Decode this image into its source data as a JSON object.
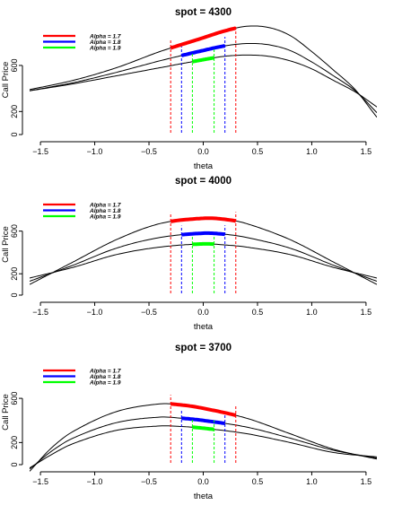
{
  "chart_data": [
    {
      "type": "line",
      "title": "spot = 4300",
      "xlabel": "theta",
      "ylabel": "Call Price",
      "xlim": [
        -1.6,
        1.6
      ],
      "ylim": [
        0,
        950
      ],
      "xticks": [
        -1.5,
        -1.0,
        -0.5,
        0.0,
        0.5,
        1.0,
        1.5
      ],
      "yticks": [
        0,
        200,
        600
      ],
      "legend_position": "top-left",
      "series": [
        {
          "name": "Alpha = 1.7",
          "color": "#ff0000",
          "x": [
            -1.6,
            -1.2,
            -0.8,
            -0.4,
            0.0,
            0.2,
            0.4,
            0.6,
            0.8,
            1.0,
            1.2,
            1.4,
            1.6
          ],
          "y": [
            390,
            470,
            580,
            720,
            840,
            900,
            940,
            930,
            860,
            720,
            560,
            390,
            150
          ]
        },
        {
          "name": "Alpha = 1.8",
          "color": "#0000ff",
          "x": [
            -1.6,
            -1.2,
            -0.8,
            -0.4,
            0.0,
            0.2,
            0.4,
            0.6,
            0.8,
            1.0,
            1.2,
            1.4,
            1.6
          ],
          "y": [
            380,
            450,
            540,
            640,
            730,
            770,
            790,
            780,
            730,
            630,
            510,
            380,
            190
          ]
        },
        {
          "name": "Alpha = 1.9",
          "color": "#00ff00",
          "x": [
            -1.6,
            -1.2,
            -0.8,
            -0.4,
            0.0,
            0.2,
            0.4,
            0.6,
            0.8,
            1.0,
            1.2,
            1.4,
            1.6
          ],
          "y": [
            380,
            440,
            510,
            580,
            650,
            680,
            690,
            680,
            640,
            570,
            470,
            370,
            240
          ]
        }
      ],
      "highlights": [
        {
          "series": "Alpha = 1.7",
          "range": [
            -0.3,
            0.3
          ],
          "color": "#ff0000"
        },
        {
          "series": "Alpha = 1.8",
          "range": [
            -0.2,
            0.2
          ],
          "color": "#0000ff"
        },
        {
          "series": "Alpha = 1.9",
          "range": [
            -0.1,
            0.1
          ],
          "color": "#00ff00"
        }
      ]
    },
    {
      "type": "line",
      "title": "spot = 4000",
      "xlabel": "theta",
      "ylabel": "Call Price",
      "xlim": [
        -1.6,
        1.6
      ],
      "ylim": [
        0,
        950
      ],
      "xticks": [
        -1.5,
        -1.0,
        -0.5,
        0.0,
        0.5,
        1.0,
        1.5
      ],
      "yticks": [
        0,
        200,
        600
      ],
      "legend_position": "top-left",
      "series": [
        {
          "name": "Alpha = 1.7",
          "color": "#ff0000",
          "x": [
            -1.6,
            -1.2,
            -0.8,
            -0.4,
            0.0,
            0.2,
            0.4,
            0.8,
            1.2,
            1.6
          ],
          "y": [
            100,
            310,
            520,
            670,
            720,
            710,
            670,
            520,
            310,
            100
          ]
        },
        {
          "name": "Alpha = 1.8",
          "color": "#0000ff",
          "x": [
            -1.6,
            -1.2,
            -0.8,
            -0.4,
            0.0,
            0.2,
            0.4,
            0.8,
            1.2,
            1.6
          ],
          "y": [
            130,
            280,
            440,
            540,
            580,
            570,
            540,
            440,
            280,
            130
          ]
        },
        {
          "name": "Alpha = 1.9",
          "color": "#00ff00",
          "x": [
            -1.6,
            -1.2,
            -0.8,
            -0.4,
            0.0,
            0.2,
            0.4,
            0.8,
            1.2,
            1.6
          ],
          "y": [
            160,
            260,
            380,
            450,
            480,
            470,
            450,
            380,
            260,
            160
          ]
        }
      ],
      "highlights": [
        {
          "series": "Alpha = 1.7",
          "range": [
            -0.3,
            0.3
          ],
          "color": "#ff0000"
        },
        {
          "series": "Alpha = 1.8",
          "range": [
            -0.2,
            0.2
          ],
          "color": "#0000ff"
        },
        {
          "series": "Alpha = 1.9",
          "range": [
            -0.1,
            0.1
          ],
          "color": "#00ff00"
        }
      ]
    },
    {
      "type": "line",
      "title": "spot = 3700",
      "xlabel": "theta",
      "ylabel": "Call Price",
      "xlim": [
        -1.6,
        1.6
      ],
      "ylim": [
        0,
        950
      ],
      "xticks": [
        -1.5,
        -1.0,
        -0.5,
        0.0,
        0.5,
        1.0,
        1.5
      ],
      "yticks": [
        0,
        200,
        600
      ],
      "legend_position": "top-left",
      "series": [
        {
          "name": "Alpha = 1.7",
          "color": "#ff0000",
          "x": [
            -1.6,
            -1.4,
            -1.2,
            -0.8,
            -0.4,
            -0.2,
            0.0,
            0.4,
            0.8,
            1.2,
            1.6
          ],
          "y": [
            -60,
            150,
            300,
            480,
            550,
            540,
            510,
            420,
            280,
            140,
            50
          ]
        },
        {
          "name": "Alpha = 1.8",
          "color": "#0000ff",
          "x": [
            -1.6,
            -1.4,
            -1.2,
            -0.8,
            -0.4,
            -0.2,
            0.0,
            0.4,
            0.8,
            1.2,
            1.6
          ],
          "y": [
            -40,
            120,
            240,
            380,
            430,
            420,
            400,
            340,
            240,
            130,
            60
          ]
        },
        {
          "name": "Alpha = 1.9",
          "color": "#00ff00",
          "x": [
            -1.6,
            -1.4,
            -1.2,
            -0.8,
            -0.4,
            -0.2,
            0.0,
            0.4,
            0.8,
            1.2,
            1.6
          ],
          "y": [
            -30,
            90,
            190,
            310,
            350,
            345,
            330,
            280,
            200,
            110,
            70
          ]
        }
      ],
      "highlights": [
        {
          "series": "Alpha = 1.7",
          "range": [
            -0.3,
            0.3
          ],
          "color": "#ff0000"
        },
        {
          "series": "Alpha = 1.8",
          "range": [
            -0.2,
            0.2
          ],
          "color": "#0000ff"
        },
        {
          "series": "Alpha = 1.9",
          "range": [
            -0.1,
            0.1
          ],
          "color": "#00ff00"
        }
      ]
    }
  ]
}
